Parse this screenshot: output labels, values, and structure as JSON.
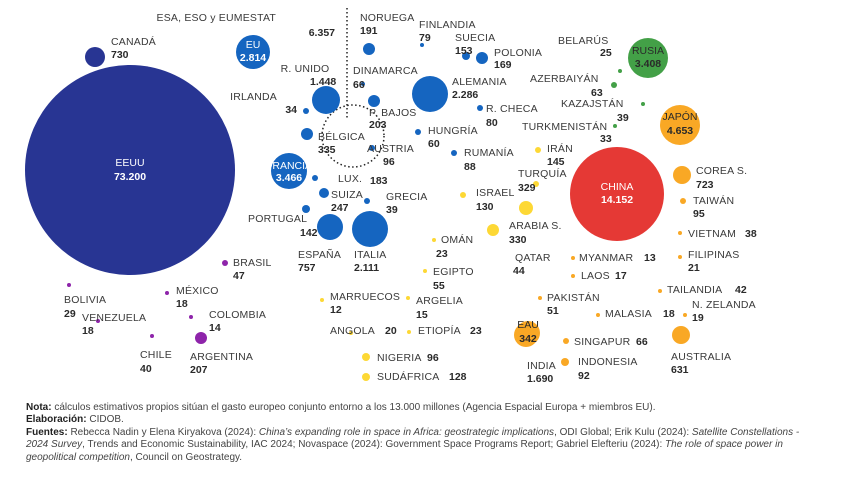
{
  "chart_data": {
    "type": "bubble",
    "title": "",
    "units": "millones",
    "series": [
      {
        "key": "eeuu",
        "label": "EEUU",
        "value": "73.200",
        "num": 73200,
        "color": "#283593",
        "inside": true
      },
      {
        "key": "canada",
        "label": "CANADÁ",
        "value": "730",
        "num": 730,
        "color": "#283593"
      },
      {
        "key": "esa",
        "label": "ESA, ESO y EUMESTAT",
        "value": "6.357",
        "num": 6357,
        "color": "#1565c0"
      },
      {
        "key": "eu",
        "label": "EU",
        "value": "2.814",
        "num": 2814,
        "color": "#1565c0",
        "inside": true
      },
      {
        "key": "reinounido",
        "label": "R. UNIDO",
        "value": "1.448",
        "num": 1448,
        "color": "#1565c0"
      },
      {
        "key": "irlanda",
        "label": "IRLANDA",
        "value": "34",
        "num": 34,
        "color": "#1565c0"
      },
      {
        "key": "belgica",
        "label": "BÉLGICA",
        "value": "335",
        "num": 335,
        "color": "#1565c0"
      },
      {
        "key": "francia",
        "label": "FRANCIA",
        "value": "3.466",
        "num": 3466,
        "color": "#1565c0",
        "inside": true
      },
      {
        "key": "lux",
        "label": "LUX.",
        "value": "183",
        "num": 183,
        "color": "#1565c0"
      },
      {
        "key": "suiza",
        "label": "SUIZA",
        "value": "247",
        "num": 247,
        "color": "#1565c0"
      },
      {
        "key": "portugal",
        "label": "PORTUGAL",
        "value": "142",
        "num": 142,
        "color": "#1565c0"
      },
      {
        "key": "espana",
        "label": "ESPAÑA",
        "value": "757",
        "num": 757,
        "color": "#1565c0"
      },
      {
        "key": "italia",
        "label": "ITALIA",
        "value": "2.111",
        "num": 2111,
        "color": "#1565c0"
      },
      {
        "key": "grecia",
        "label": "GRECIA",
        "value": "39",
        "num": 39,
        "color": "#1565c0"
      },
      {
        "key": "noruega",
        "label": "NORUEGA",
        "value": "191",
        "num": 191,
        "color": "#1565c0"
      },
      {
        "key": "dinamarca",
        "label": "DINAMARCA",
        "value": "66",
        "num": 66,
        "color": "#1565c0"
      },
      {
        "key": "pbajos",
        "label": "P. BAJOS",
        "value": "203",
        "num": 203,
        "color": "#1565c0"
      },
      {
        "key": "austria",
        "label": "AUSTRIA",
        "value": "96",
        "num": 96,
        "color": "#1565c0"
      },
      {
        "key": "finlandia",
        "label": "FINLANDIA",
        "value": "79",
        "num": 79,
        "color": "#1565c0"
      },
      {
        "key": "suecia",
        "label": "SUECIA",
        "value": "153",
        "num": 153,
        "color": "#1565c0"
      },
      {
        "key": "polonia",
        "label": "POLONIA",
        "value": "169",
        "num": 169,
        "color": "#1565c0"
      },
      {
        "key": "alemania",
        "label": "ALEMANIA",
        "value": "2.286",
        "num": 2286,
        "color": "#1565c0"
      },
      {
        "key": "rcheca",
        "label": "R. CHECA",
        "value": "80",
        "num": 80,
        "color": "#1565c0"
      },
      {
        "key": "hungria",
        "label": "HUNGRÍA",
        "value": "60",
        "num": 60,
        "color": "#1565c0"
      },
      {
        "key": "rumania",
        "label": "RUMANÍA",
        "value": "88",
        "num": 88,
        "color": "#1565c0"
      },
      {
        "key": "belarus",
        "label": "BELARÚS",
        "value": "25",
        "num": 25,
        "color": "#43a047"
      },
      {
        "key": "rusia",
        "label": "RUSIA",
        "value": "3.408",
        "num": 3408,
        "color": "#43a047",
        "inside": true,
        "darkText": true
      },
      {
        "key": "azerbaiyan",
        "label": "AZERBAIYÁN",
        "value": "63",
        "num": 63,
        "color": "#43a047"
      },
      {
        "key": "kazajstan",
        "label": "KAZAJSTÁN",
        "value": "39",
        "num": 39,
        "color": "#43a047"
      },
      {
        "key": "turkmenistan",
        "label": "TURKMENISTÁN",
        "value": "33",
        "num": 33,
        "color": "#43a047"
      },
      {
        "key": "japon",
        "label": "JAPÓN",
        "value": "4.653",
        "num": 4653,
        "color": "#f9a825",
        "inside": true,
        "darkText": true
      },
      {
        "key": "china",
        "label": "CHINA",
        "value": "14.152",
        "num": 14152,
        "color": "#e53935",
        "inside": true
      },
      {
        "key": "corea",
        "label": "COREA S.",
        "value": "723",
        "num": 723,
        "color": "#f9a825"
      },
      {
        "key": "taiwan",
        "label": "TAIWÁN",
        "value": "95",
        "num": 95,
        "color": "#f9a825"
      },
      {
        "key": "vietnam",
        "label": "VIETNAM",
        "value": "38",
        "num": 38,
        "color": "#f9a825"
      },
      {
        "key": "filipinas",
        "label": "FILIPINAS",
        "value": "21",
        "num": 21,
        "color": "#f9a825"
      },
      {
        "key": "tailandia",
        "label": "TAILANDIA",
        "value": "42",
        "num": 42,
        "color": "#f9a825"
      },
      {
        "key": "nzelanda",
        "label": "N. ZELANDA",
        "value": "19",
        "num": 19,
        "color": "#f9a825"
      },
      {
        "key": "australia",
        "label": "AUSTRALIA",
        "value": "631",
        "num": 631,
        "color": "#f9a825"
      },
      {
        "key": "malasia",
        "label": "MALASIA",
        "value": "18",
        "num": 18,
        "color": "#f9a825"
      },
      {
        "key": "singapur",
        "label": "SINGAPUR",
        "value": "66",
        "num": 66,
        "color": "#f9a825"
      },
      {
        "key": "indonesia",
        "label": "INDONESIA",
        "value": "92",
        "num": 92,
        "color": "#f9a825"
      },
      {
        "key": "india",
        "label": "INDIA",
        "value": "1.690",
        "num": 1690,
        "color": "#f9a825"
      },
      {
        "key": "eau",
        "label": "EAU",
        "value": "342",
        "num": 342,
        "color": "#f9a825",
        "inside": true,
        "darkText": true
      },
      {
        "key": "pakistan",
        "label": "PAKISTÁN",
        "value": "51",
        "num": 51,
        "color": "#f9a825"
      },
      {
        "key": "laos",
        "label": "LAOS",
        "value": "17",
        "num": 17,
        "color": "#f9a825"
      },
      {
        "key": "myanmar",
        "label": "MYANMAR",
        "value": "13",
        "num": 13,
        "color": "#f9a825"
      },
      {
        "key": "iran",
        "label": "IRÁN",
        "value": "145",
        "num": 145,
        "color": "#fdd835"
      },
      {
        "key": "turquia",
        "label": "TURQUÍA",
        "value": "329",
        "num": 329,
        "color": "#fdd835"
      },
      {
        "key": "israel",
        "label": "ISRAEL",
        "value": "130",
        "num": 130,
        "color": "#fdd835"
      },
      {
        "key": "arabia",
        "label": "ARABIA S.",
        "value": "330",
        "num": 330,
        "color": "#fdd835"
      },
      {
        "key": "oman",
        "label": "OMÁN",
        "value": "23",
        "num": 23,
        "color": "#fdd835"
      },
      {
        "key": "qatar",
        "label": "QATAR",
        "value": "44",
        "num": 44,
        "color": "#fdd835"
      },
      {
        "key": "egipto",
        "label": "EGIPTO",
        "value": "55",
        "num": 55,
        "color": "#fdd835"
      },
      {
        "key": "marruecos",
        "label": "MARRUECOS",
        "value": "12",
        "num": 12,
        "color": "#fdd835"
      },
      {
        "key": "argelia",
        "label": "ARGELIA",
        "value": "15",
        "num": 15,
        "color": "#fdd835"
      },
      {
        "key": "angola",
        "label": "ANGOLA",
        "value": "20",
        "num": 20,
        "color": "#fdd835"
      },
      {
        "key": "etiopia",
        "label": "ETIOPÍA",
        "value": "23",
        "num": 23,
        "color": "#fdd835"
      },
      {
        "key": "nigeria",
        "label": "NIGERIA",
        "value": "96",
        "num": 96,
        "color": "#fdd835"
      },
      {
        "key": "sudafrica",
        "label": "SUDÁFRICA",
        "value": "128",
        "num": 128,
        "color": "#fdd835"
      },
      {
        "key": "brasil",
        "label": "BRASIL",
        "value": "47",
        "num": 47,
        "color": "#8e24aa"
      },
      {
        "key": "mexico",
        "label": "MÉXICO",
        "value": "18",
        "num": 18,
        "color": "#8e24aa"
      },
      {
        "key": "bolivia",
        "label": "BOLIVIA",
        "value": "29",
        "num": 29,
        "color": "#8e24aa"
      },
      {
        "key": "venezuela",
        "label": "VENEZUELA",
        "value": "18",
        "num": 18,
        "color": "#8e24aa"
      },
      {
        "key": "colombia",
        "label": "COLOMBIA",
        "value": "14",
        "num": 14,
        "color": "#8e24aa"
      },
      {
        "key": "argentina",
        "label": "ARGENTINA",
        "value": "207",
        "num": 207,
        "color": "#8e24aa"
      },
      {
        "key": "chile",
        "label": "CHILE",
        "value": "40",
        "num": 40,
        "color": "#8e24aa"
      }
    ]
  },
  "notes": {
    "nota_label": "Nota:",
    "nota_text": " cálculos estimativos propios sitúan el gasto europeo conjunto entorno a los 13.000 millones (Agencia Espacial Europa + miembros EU).",
    "elab_label": "Elaboración:",
    "elab_text": " CIDOB.",
    "fuentes_label": "Fuentes:",
    "f1": " Rebecca Nadin y Elena Kiryakova (2024): ",
    "f1_title": "China’s expanding role in space in Africa: geostrategic implications",
    "f1_end": ", ODI Global; Erik Kulu (2024): ",
    "f2_title": "Satellite Constellations - 2024 Survey",
    "f2_end": ", Trends and Economic Sustainability, IAC 2024; Novaspace (2024): Government Space Programs Report; Gabriel Elefteriu (2024): ",
    "f3_title": "The role of space power in geopolitical competition",
    "f3_end": ", Council on Geostrategy."
  }
}
